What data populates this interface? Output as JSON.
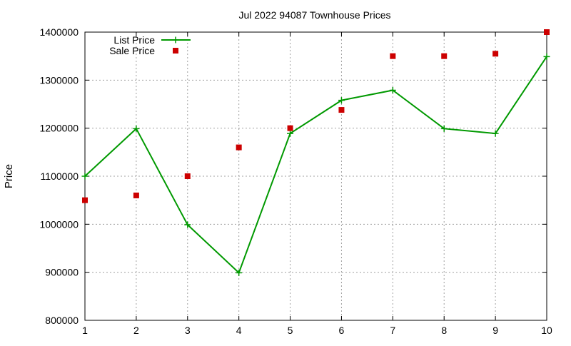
{
  "chart_data": {
    "type": "line",
    "title": "Jul 2022 94087 Townhouse Prices",
    "xlabel": "",
    "ylabel": "Price",
    "x": [
      1,
      2,
      3,
      4,
      5,
      6,
      7,
      8,
      9,
      10
    ],
    "xlim": [
      1,
      10
    ],
    "ylim": [
      800000,
      1400000
    ],
    "x_ticks": [
      "1",
      "2",
      "3",
      "4",
      "5",
      "6",
      "7",
      "8",
      "9",
      "10"
    ],
    "y_ticks": [
      "800000",
      "900000",
      "1000000",
      "1100000",
      "1200000",
      "1300000",
      "1400000"
    ],
    "grid": true,
    "legend_position": "top-left",
    "series": [
      {
        "name": "List Price",
        "kind": "line-with-plus-markers",
        "color": "#009900",
        "values": [
          1100000,
          1199000,
          999000,
          899000,
          1189000,
          1258000,
          1279000,
          1199000,
          1189000,
          1349000
        ]
      },
      {
        "name": "Sale Price",
        "kind": "square-markers",
        "color": "#cc0000",
        "values": [
          1050000,
          1060000,
          1100000,
          1160000,
          1200000,
          1238000,
          1350000,
          1350000,
          1355000,
          1400000
        ]
      }
    ]
  }
}
